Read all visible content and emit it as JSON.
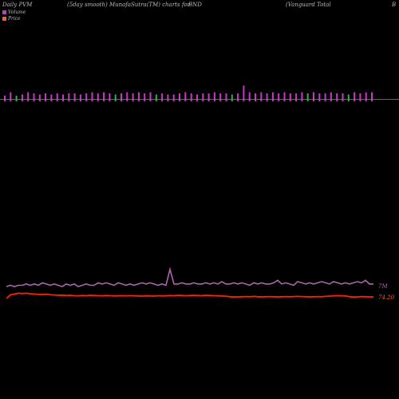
{
  "header": {
    "col1": "Daily PVM",
    "col2": "(5day smooth) MunafaSutra(TM) charts for",
    "col3": "BND",
    "col4": "(Vanguard Total",
    "col5": "B"
  },
  "legend": {
    "volume_label": "Volume",
    "price_label": "Price"
  },
  "colors": {
    "background": "#000000",
    "volume_up": "#cc33cc",
    "volume_down": "#33aa55",
    "volume_line": "#aa66aa",
    "price_line": "#ff2200",
    "baseline": "#888888",
    "label_volume": "#aa66aa",
    "label_price": "#ff5533"
  },
  "chart_data": {
    "type": "line",
    "title": "",
    "xlabel": "",
    "ylabel": "",
    "grid": false,
    "legend_position": "top-left",
    "volume_bars": {
      "up": [
        1,
        1,
        0,
        1,
        1,
        1,
        1,
        1,
        1,
        1,
        1,
        1,
        1,
        1,
        1,
        1,
        1,
        1,
        1,
        0,
        1,
        1,
        1,
        1,
        1,
        1,
        0,
        1,
        1,
        1,
        1,
        1,
        1,
        1,
        1,
        1,
        1,
        1,
        1,
        0,
        1,
        1,
        1,
        1,
        1,
        1,
        1,
        1,
        1,
        1,
        1,
        1,
        0,
        1,
        1,
        1,
        1,
        1,
        1,
        0,
        1,
        1,
        1,
        1
      ],
      "values": [
        3,
        6,
        3,
        4,
        6,
        5,
        4,
        5,
        4,
        5,
        4,
        5,
        5,
        4,
        5,
        6,
        5,
        6,
        5,
        4,
        5,
        6,
        5,
        6,
        5,
        6,
        4,
        5,
        4,
        4,
        5,
        6,
        5,
        4,
        5,
        5,
        6,
        5,
        5,
        4,
        5,
        12,
        6,
        5,
        6,
        5,
        6,
        5,
        6,
        5,
        5,
        6,
        5,
        6,
        5,
        5,
        6,
        5,
        5,
        4,
        6,
        5,
        6,
        6
      ]
    },
    "series": [
      {
        "name": "Volume",
        "values": [
          9,
          10,
          9,
          10,
          10,
          11,
          10,
          11,
          10,
          12,
          11,
          10,
          11,
          10,
          9,
          11,
          10,
          11,
          9,
          10,
          11,
          10,
          10,
          12,
          11,
          12,
          11,
          10,
          12,
          11,
          10,
          11,
          10,
          11,
          12,
          11,
          12,
          11,
          10,
          11,
          10,
          23,
          11,
          11,
          12,
          11,
          11,
          12,
          11,
          11,
          12,
          11,
          12,
          11,
          13,
          11,
          11,
          12,
          11,
          12,
          11,
          10,
          12,
          11,
          12,
          11,
          11,
          12,
          14,
          11,
          12,
          11,
          10,
          13,
          12,
          11,
          12,
          11,
          12,
          13,
          12,
          11,
          13,
          12,
          11,
          12,
          11,
          12,
          13,
          12,
          14,
          11,
          11
        ]
      },
      {
        "name": "Price",
        "values": [
          74.2,
          74.4,
          74.45,
          74.5,
          74.48,
          74.5,
          74.47,
          74.45,
          74.43,
          74.42,
          74.44,
          74.41,
          74.4,
          74.38,
          74.39,
          74.37,
          74.38,
          74.36,
          74.35,
          74.37,
          74.36,
          74.38,
          74.37,
          74.36,
          74.35,
          74.37,
          74.36,
          74.34,
          74.35,
          74.36,
          74.35,
          74.36,
          74.35,
          74.34,
          74.33,
          74.35,
          74.34,
          74.33,
          74.36,
          74.34,
          74.35,
          74.37,
          74.36,
          74.38,
          74.37,
          74.36,
          74.37,
          74.38,
          74.37,
          74.36,
          74.38,
          74.37,
          74.36,
          74.35,
          74.34,
          74.33,
          74.3,
          74.28,
          74.29,
          74.3,
          74.31,
          74.3,
          74.32,
          74.3,
          74.29,
          74.3,
          74.31,
          74.3,
          74.29,
          74.3,
          74.31,
          74.3,
          74.31,
          74.32,
          74.31,
          74.3,
          74.29,
          74.3,
          74.31,
          74.3,
          74.32,
          74.33,
          74.35,
          74.36,
          74.35,
          74.34,
          74.3,
          74.28,
          74.29,
          74.31,
          74.3,
          74.29,
          74.28
        ]
      }
    ],
    "value_labels": {
      "volume": "7M",
      "price": "74.20"
    }
  }
}
